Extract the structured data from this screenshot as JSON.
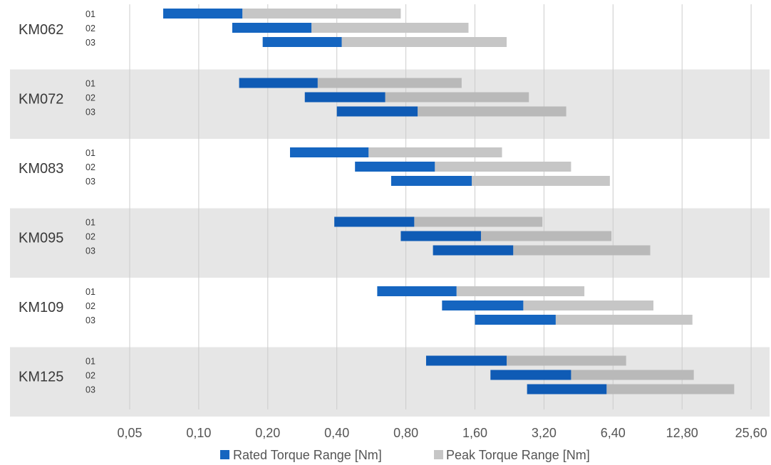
{
  "chart_data": {
    "type": "bar",
    "subtype": "horizontal-floating-range",
    "x_scale": "log2",
    "xlim": [
      0.05,
      25.6
    ],
    "x_ticks": [
      "0,05",
      "0,10",
      "0,20",
      "0,40",
      "0,80",
      "1,60",
      "3,20",
      "6,40",
      "12,80",
      "25,60"
    ],
    "x_tick_values": [
      0.05,
      0.1,
      0.2,
      0.4,
      0.8,
      1.6,
      3.2,
      6.4,
      12.8,
      25.6
    ],
    "grid": "vertical",
    "legend_position": "bottom-center",
    "series": [
      {
        "name": "Rated Torque Range [Nm]",
        "color": "#1565c0"
      },
      {
        "name": "Peak Torque Range [Nm]",
        "color": "#c6c6c6"
      }
    ],
    "colors": {
      "rated": "#1565c0",
      "peak": "#c6c6c6",
      "band_shade": "#e6e6e6",
      "grid": "#cccccc"
    },
    "groups": [
      {
        "label": "KM062",
        "shaded": false,
        "rows": [
          {
            "label": "01",
            "rated": [
              0.07,
              0.155
            ],
            "peak": [
              0.155,
              0.76
            ]
          },
          {
            "label": "02",
            "rated": [
              0.14,
              0.31
            ],
            "peak": [
              0.31,
              1.5
            ]
          },
          {
            "label": "03",
            "rated": [
              0.19,
              0.42
            ],
            "peak": [
              0.42,
              2.2
            ]
          }
        ]
      },
      {
        "label": "KM072",
        "shaded": true,
        "rows": [
          {
            "label": "01",
            "rated": [
              0.15,
              0.33
            ],
            "peak": [
              0.33,
              1.4
            ]
          },
          {
            "label": "02",
            "rated": [
              0.29,
              0.65
            ],
            "peak": [
              0.65,
              2.75
            ]
          },
          {
            "label": "03",
            "rated": [
              0.4,
              0.9
            ],
            "peak": [
              0.9,
              4.0
            ]
          }
        ]
      },
      {
        "label": "KM083",
        "shaded": false,
        "rows": [
          {
            "label": "01",
            "rated": [
              0.25,
              0.55
            ],
            "peak": [
              0.55,
              2.1
            ]
          },
          {
            "label": "02",
            "rated": [
              0.48,
              1.07
            ],
            "peak": [
              1.07,
              4.2
            ]
          },
          {
            "label": "03",
            "rated": [
              0.69,
              1.55
            ],
            "peak": [
              1.55,
              6.2
            ]
          }
        ]
      },
      {
        "label": "KM095",
        "shaded": true,
        "rows": [
          {
            "label": "01",
            "rated": [
              0.39,
              0.87
            ],
            "peak": [
              0.87,
              3.15
            ]
          },
          {
            "label": "02",
            "rated": [
              0.76,
              1.7
            ],
            "peak": [
              1.7,
              6.3
            ]
          },
          {
            "label": "03",
            "rated": [
              1.05,
              2.35
            ],
            "peak": [
              2.35,
              9.3
            ]
          }
        ]
      },
      {
        "label": "KM109",
        "shaded": false,
        "rows": [
          {
            "label": "01",
            "rated": [
              0.6,
              1.33
            ],
            "peak": [
              1.33,
              4.8
            ]
          },
          {
            "label": "02",
            "rated": [
              1.15,
              2.6
            ],
            "peak": [
              2.6,
              9.6
            ]
          },
          {
            "label": "03",
            "rated": [
              1.6,
              3.6
            ],
            "peak": [
              3.6,
              14.2
            ]
          }
        ]
      },
      {
        "label": "KM125",
        "shaded": true,
        "rows": [
          {
            "label": "01",
            "rated": [
              0.98,
              2.2
            ],
            "peak": [
              2.2,
              7.3
            ]
          },
          {
            "label": "02",
            "rated": [
              1.87,
              4.2
            ],
            "peak": [
              4.2,
              14.4
            ]
          },
          {
            "label": "03",
            "rated": [
              2.7,
              6.0
            ],
            "peak": [
              6.0,
              21.6
            ]
          }
        ]
      }
    ]
  }
}
